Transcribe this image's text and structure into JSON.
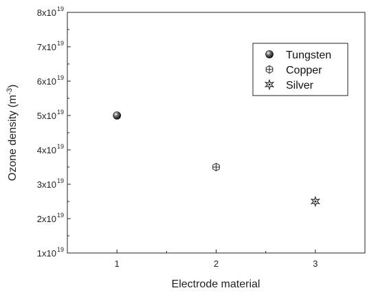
{
  "chart_data": {
    "type": "scatter",
    "xlabel": "Electrode material",
    "ylabel_base": "Ozone density (m",
    "ylabel_exp": "-3",
    "ylabel_close": ")",
    "xlim": [
      0.5,
      3.5
    ],
    "ylim": [
      1e+19,
      8e+19
    ],
    "x_ticks": [
      1,
      2,
      3
    ],
    "y_ticks": [
      {
        "value": 1e+19,
        "mantissa": "1x10",
        "exp": "19"
      },
      {
        "value": 2e+19,
        "mantissa": "2x10",
        "exp": "19"
      },
      {
        "value": 3e+19,
        "mantissa": "3x10",
        "exp": "19"
      },
      {
        "value": 4e+19,
        "mantissa": "4x10",
        "exp": "19"
      },
      {
        "value": 5e+19,
        "mantissa": "5x10",
        "exp": "19"
      },
      {
        "value": 6e+19,
        "mantissa": "6x10",
        "exp": "19"
      },
      {
        "value": 7e+19,
        "mantissa": "7x10",
        "exp": "19"
      },
      {
        "value": 8e+19,
        "mantissa": "8x10",
        "exp": "19"
      }
    ],
    "series": [
      {
        "name": "Tungsten",
        "marker": "sphere",
        "x": [
          1
        ],
        "y": [
          5e+19
        ]
      },
      {
        "name": "Copper",
        "marker": "hex-cross",
        "x": [
          2
        ],
        "y": [
          3.5e+19
        ]
      },
      {
        "name": "Silver",
        "marker": "star",
        "x": [
          3
        ],
        "y": [
          2.5e+19
        ]
      }
    ],
    "grid": false,
    "legend_position": "top-right",
    "colors": {
      "axis": "#222222",
      "marker": "#222222"
    }
  }
}
